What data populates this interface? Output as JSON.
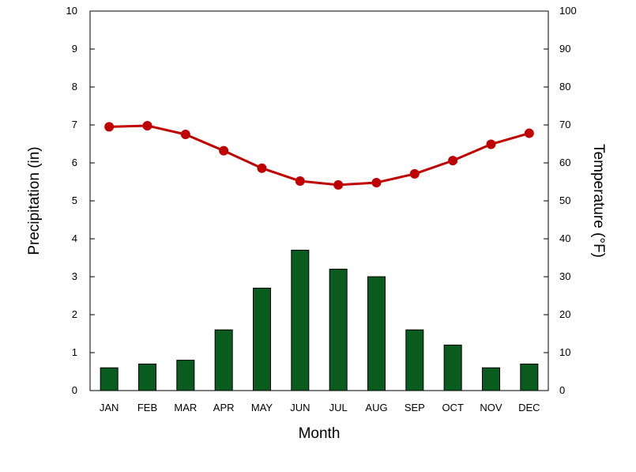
{
  "chart_data": {
    "type": "bar",
    "xlabel": "Month",
    "ylabel": "Precipitation (in)",
    "y2label": "Temperature (°F)",
    "categories": [
      "JAN",
      "FEB",
      "MAR",
      "APR",
      "MAY",
      "JUN",
      "JUL",
      "AUG",
      "SEP",
      "OCT",
      "NOV",
      "DEC"
    ],
    "ylim": [
      0,
      10
    ],
    "y2lim": [
      0,
      100
    ],
    "yticks": [
      "0",
      "1",
      "2",
      "3",
      "4",
      "5",
      "6",
      "7",
      "8",
      "9",
      "10"
    ],
    "y2ticks": [
      "0",
      "10",
      "20",
      "30",
      "40",
      "50",
      "60",
      "70",
      "80",
      "90",
      "100"
    ],
    "grid": false,
    "series": [
      {
        "type": "bar",
        "axis": "left",
        "color": "#0a5c1e",
        "values": [
          0.6,
          0.7,
          0.8,
          1.6,
          2.7,
          3.7,
          3.2,
          3.0,
          1.6,
          1.2,
          0.6,
          0.7
        ]
      },
      {
        "type": "line",
        "axis": "right",
        "color": "#c00000",
        "values": [
          69.5,
          69.8,
          67.5,
          63.2,
          58.6,
          55.2,
          54.2,
          54.8,
          57.1,
          60.6,
          64.9,
          67.8
        ]
      }
    ]
  }
}
